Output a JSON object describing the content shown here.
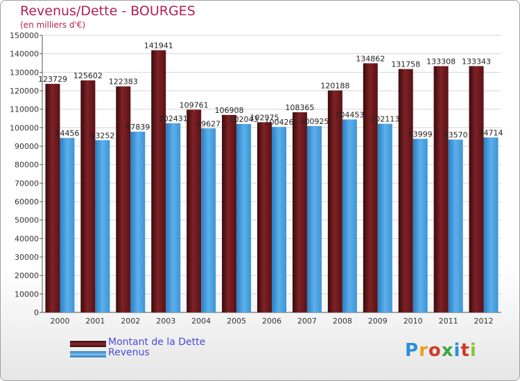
{
  "header": {
    "title": "Revenus/Dette - BOURGES",
    "subtitle": "(en milliers d'€)"
  },
  "legend": [
    {
      "label": "Montant de la Dette",
      "color": "#6e1a1e"
    },
    {
      "label": "Revenus",
      "color": "#4ea2de"
    }
  ],
  "logo": {
    "text": "Proxiti",
    "colors": [
      "#2b8fd6",
      "#e8a21a",
      "#d03a2a",
      "#3aa845",
      "#2b8fd6",
      "#d03a2a",
      "#8ac43a"
    ]
  },
  "chart_data": {
    "type": "bar",
    "categories": [
      "2000",
      "2001",
      "2002",
      "2003",
      "2004",
      "2005",
      "2006",
      "2007",
      "2008",
      "2009",
      "2010",
      "2011",
      "2012"
    ],
    "series": [
      {
        "name": "Montant de la Dette",
        "color": "#6e1a1e",
        "values": [
          123729,
          125602,
          122383,
          141941,
          109761,
          106908,
          102975,
          108365,
          120188,
          134862,
          131758,
          133308,
          133343
        ]
      },
      {
        "name": "Revenus",
        "color": "#4ea2de",
        "values": [
          94456,
          93252,
          97839,
          102431,
          99627,
          102043,
          100426,
          100925,
          104453,
          102113,
          93999,
          93570,
          94714
        ]
      }
    ],
    "ylim": [
      0,
      150000
    ],
    "yticks": [
      "0",
      "10000",
      "20000",
      "30000",
      "40000",
      "50000",
      "60000",
      "70000",
      "80000",
      "90000",
      "100000",
      "110000",
      "120000",
      "130000",
      "140000",
      "150000"
    ],
    "grid": true,
    "legend_position": "bottom-left"
  }
}
